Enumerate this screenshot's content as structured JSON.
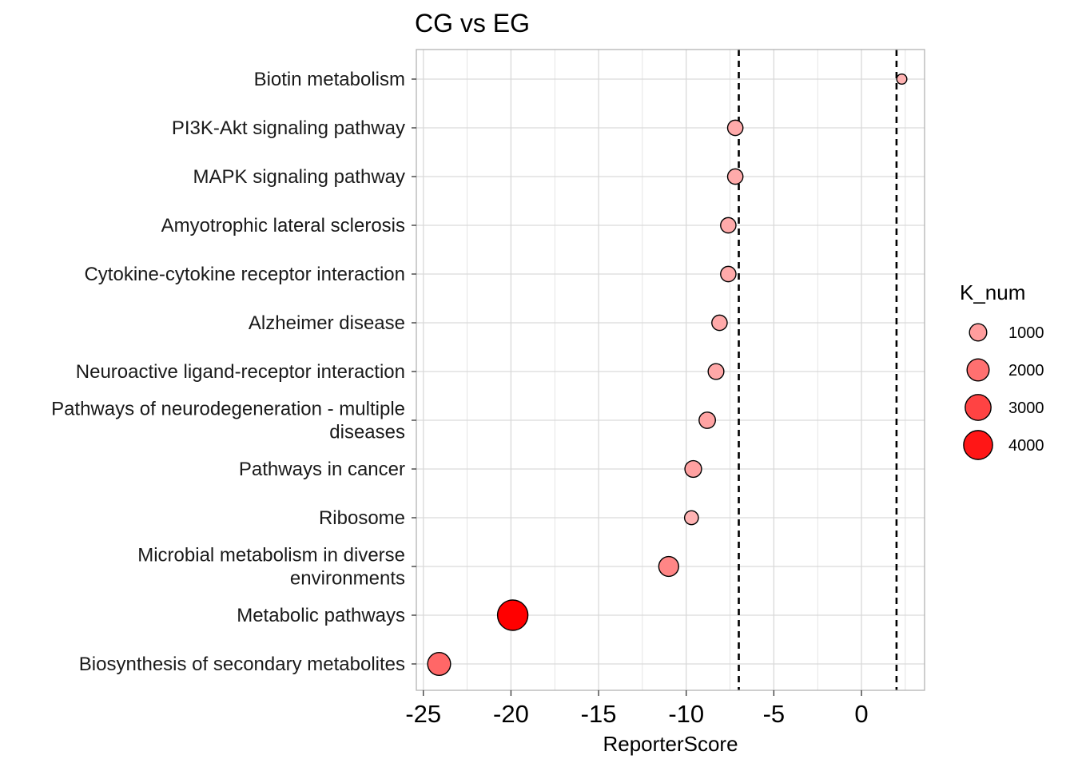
{
  "chart_data": {
    "type": "scatter",
    "title": "CG vs EG",
    "xlabel": "ReporterScore",
    "ylabel": "",
    "xlim": [
      -25.4,
      3.6
    ],
    "x_ticks": [
      -25,
      -20,
      -15,
      -10,
      -5,
      0
    ],
    "x_tick_labels": [
      "-25",
      "-20",
      "-15",
      "-10",
      "-5",
      "0"
    ],
    "grid": true,
    "reference_lines_x": [
      -7,
      2
    ],
    "categories": [
      "Biotin metabolism",
      "PI3K-Akt signaling pathway",
      "MAPK signaling pathway",
      "Amyotrophic lateral sclerosis",
      "Cytokine-cytokine receptor interaction",
      "Alzheimer disease",
      "Neuroactive ligand-receptor interaction",
      "Pathways of neurodegeneration - multiple diseases",
      "Pathways in cancer",
      "Ribosome",
      "Microbial metabolism in diverse environments",
      "Metabolic pathways",
      "Biosynthesis of secondary metabolites"
    ],
    "category_label_lines": [
      [
        "Biotin metabolism"
      ],
      [
        "PI3K-Akt signaling pathway"
      ],
      [
        "MAPK signaling pathway"
      ],
      [
        "Amyotrophic lateral sclerosis"
      ],
      [
        "Cytokine-cytokine receptor interaction"
      ],
      [
        "Alzheimer disease"
      ],
      [
        "Neuroactive ligand-receptor interaction"
      ],
      [
        "Pathways of neurodegeneration - multiple",
        "diseases"
      ],
      [
        "Pathways in cancer"
      ],
      [
        "Ribosome"
      ],
      [
        "Microbial metabolism in diverse",
        "environments"
      ],
      [
        "Metabolic pathways"
      ],
      [
        "Biosynthesis of secondary metabolites"
      ]
    ],
    "x": [
      2.3,
      -7.2,
      -7.2,
      -7.6,
      -7.6,
      -8.1,
      -8.3,
      -8.8,
      -9.6,
      -9.7,
      -11.0,
      -19.9,
      -24.1
    ],
    "k_num": [
      150,
      700,
      700,
      700,
      700,
      700,
      750,
      850,
      900,
      500,
      1500,
      4500,
      2200
    ],
    "legend": {
      "title": "K_num",
      "position": "right",
      "breaks": [
        1000,
        2000,
        3000,
        4000
      ],
      "labels": [
        "1000",
        "2000",
        "3000",
        "4000"
      ]
    },
    "colors": {
      "low": "#ffb3b3",
      "high": "#ff0000",
      "outline": "#000000",
      "grid": "#d9d9d9",
      "panel_border": "#b3b3b3",
      "reference_line": "#000000"
    }
  }
}
